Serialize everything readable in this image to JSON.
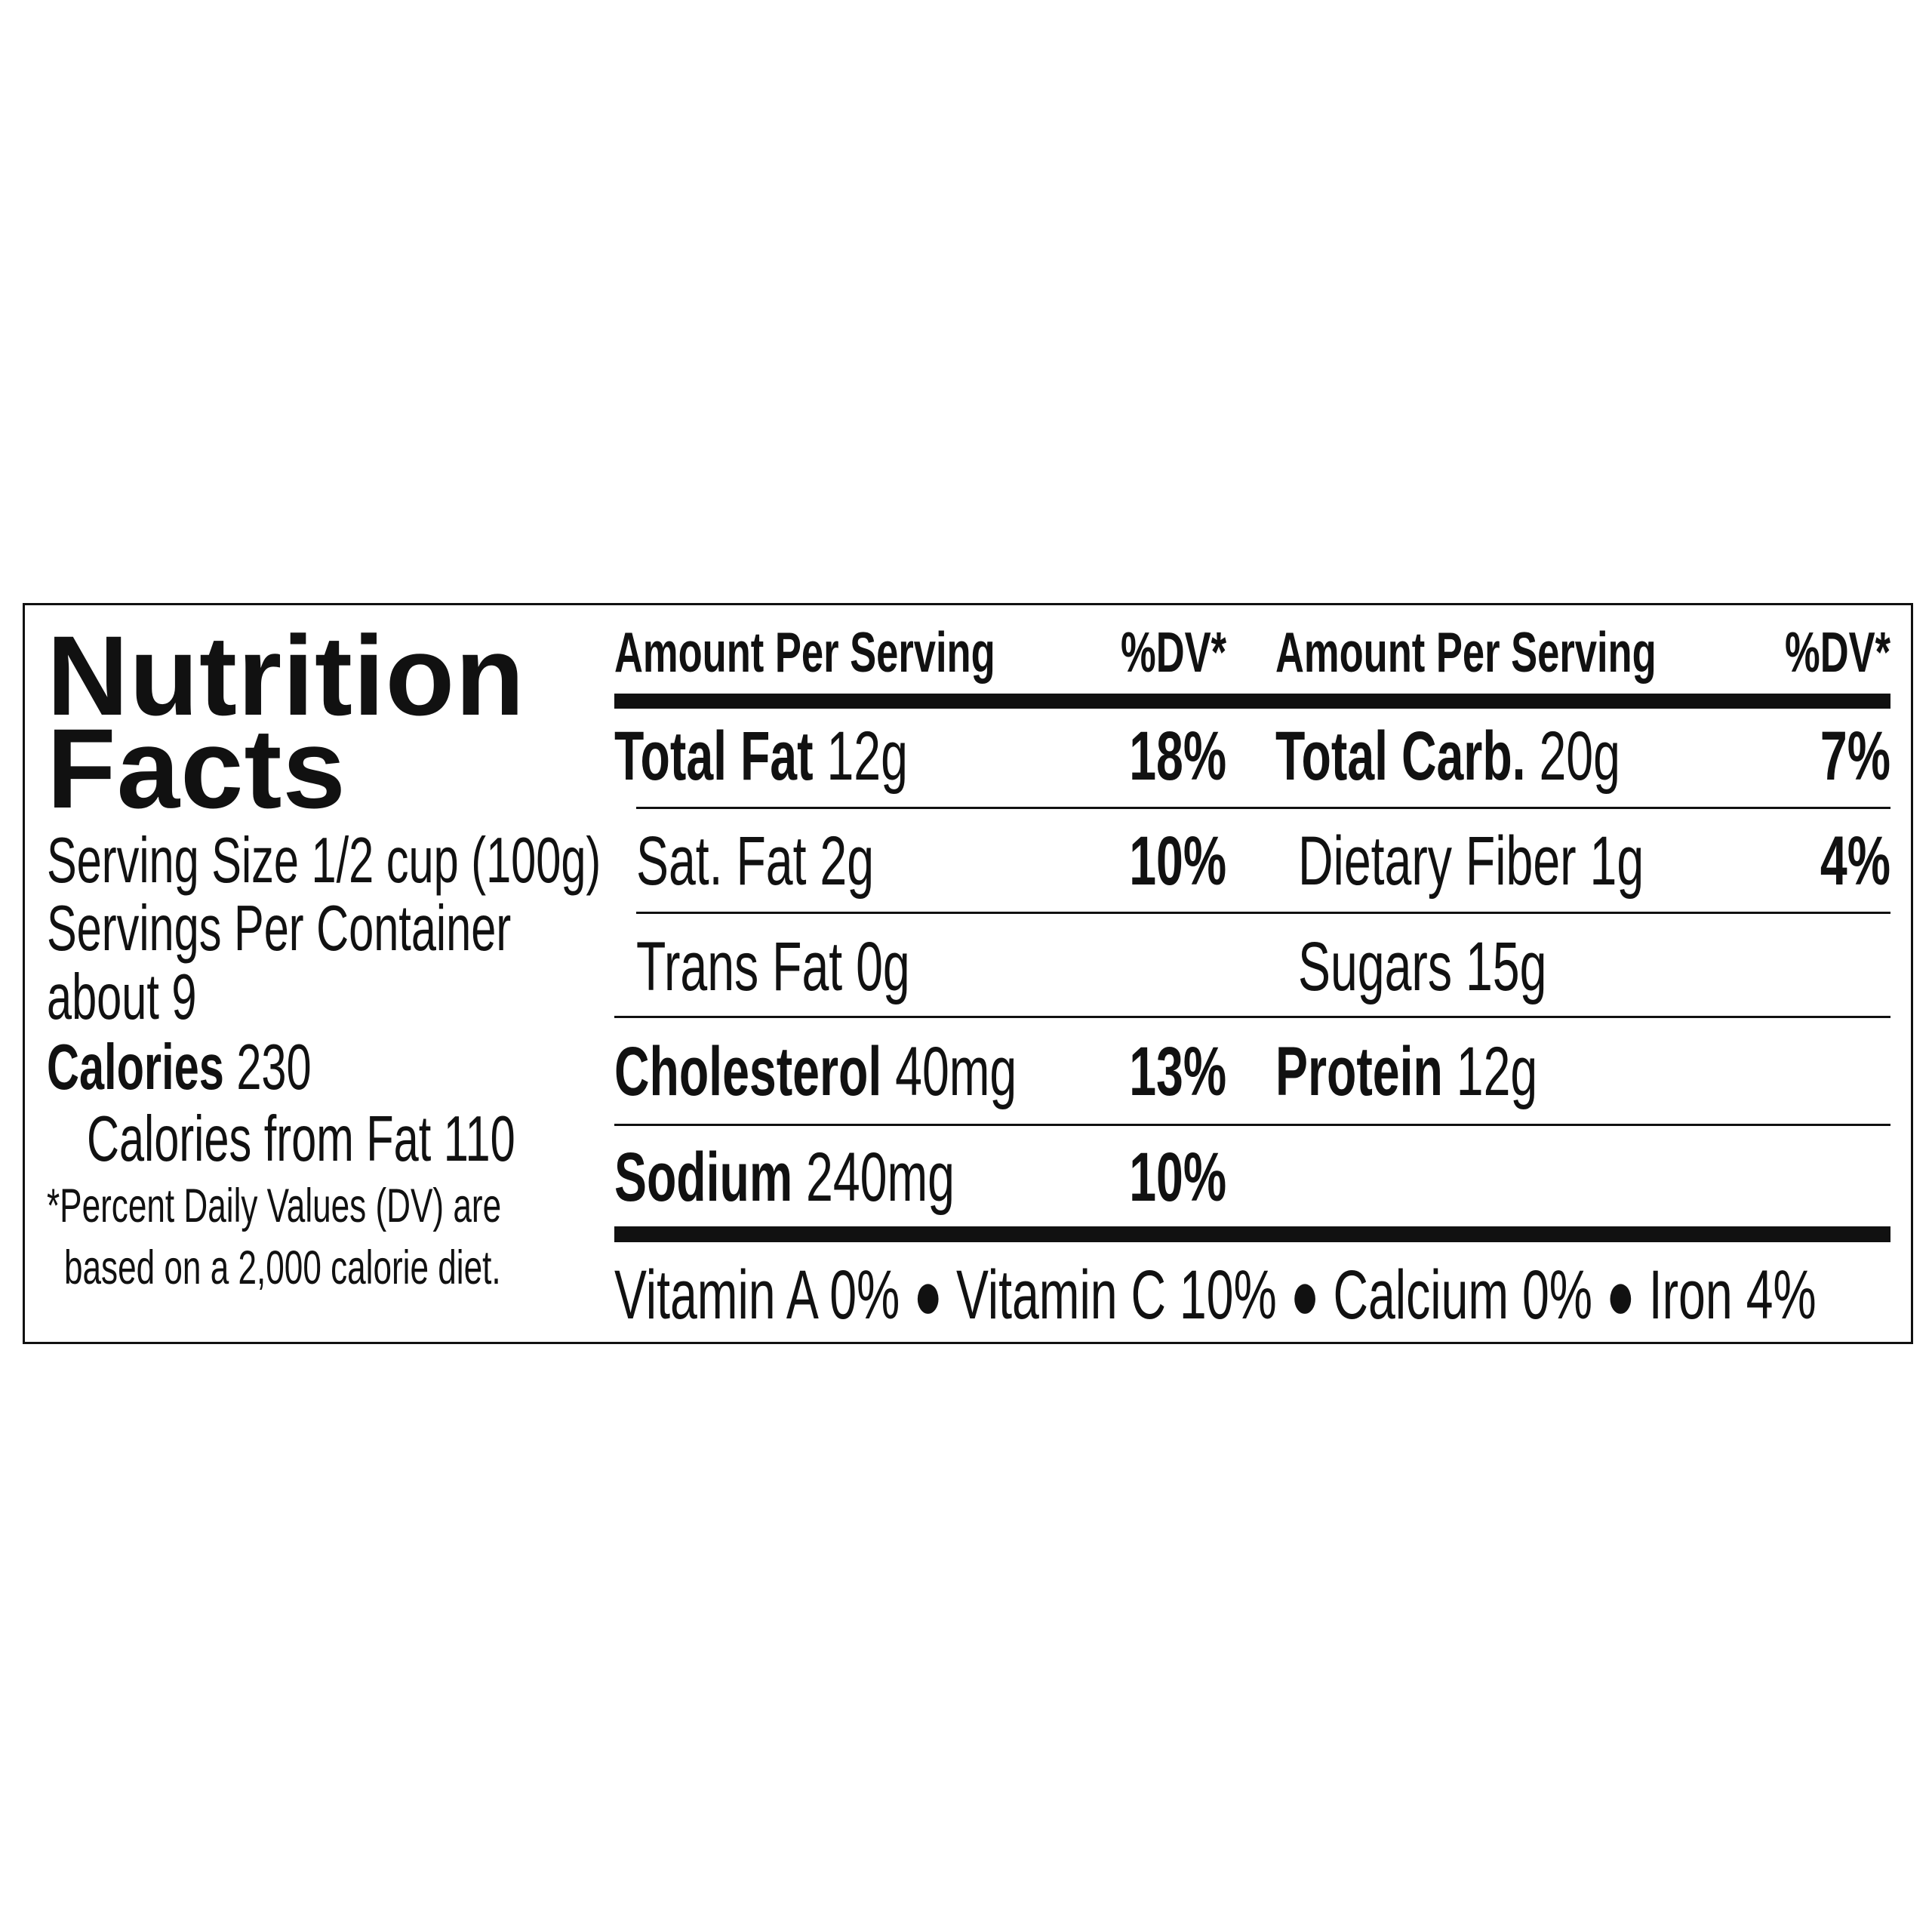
{
  "title": {
    "line1": "Nutrition",
    "line2": "Facts"
  },
  "serving": {
    "serving_size": "Serving Size 1/2 cup (100g)",
    "servings_per_container": "Servings Per Container",
    "servings_value": "about 9",
    "calories_label": "Calories",
    "calories_value": "230",
    "calories_from_fat": "Calories from Fat 110",
    "footnote_1": "*Percent Daily Values (DV) are",
    "footnote_2": "based on a 2,000 calorie diet."
  },
  "headers": {
    "amount": "Amount Per Serving",
    "dv": "%DV*"
  },
  "left_rows": [
    {
      "label": "Total Fat",
      "amount": "12g",
      "dv": "18%"
    },
    {
      "label": "Sat. Fat",
      "amount": "2g",
      "dv": "10%"
    },
    {
      "label": "Trans Fat",
      "amount": "0g",
      "dv": ""
    },
    {
      "label": "Cholesterol",
      "amount": "40mg",
      "dv": "13%"
    },
    {
      "label": "Sodium",
      "amount": "240mg",
      "dv": "10%"
    }
  ],
  "right_rows": [
    {
      "label": "Total Carb.",
      "amount": "20g",
      "dv": "7%"
    },
    {
      "label": "Dietary Fiber",
      "amount": "1g",
      "dv": "4%"
    },
    {
      "label": "Sugars",
      "amount": "15g",
      "dv": ""
    },
    {
      "label": "Protein",
      "amount": "12g",
      "dv": ""
    }
  ],
  "vitamins": [
    "Vitamin A 0%",
    "Vitamin C 10%",
    "Calcium 0%",
    "Iron 4%"
  ],
  "separator": "●"
}
